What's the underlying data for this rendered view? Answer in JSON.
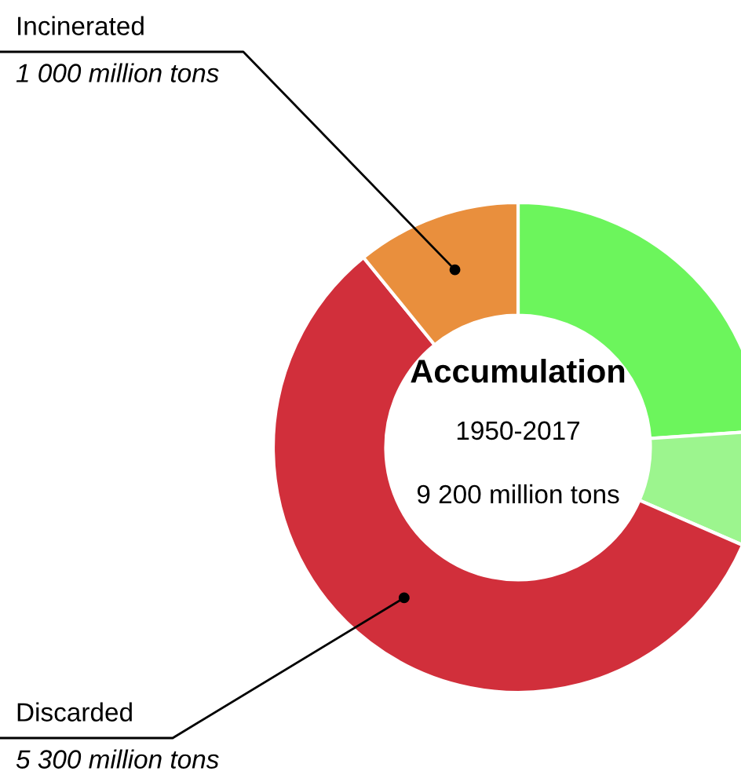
{
  "chart_data": {
    "type": "donut",
    "title": "Accumulation",
    "subtitle": "1950-2017",
    "annotations": [
      "9 200 million tons"
    ],
    "categories": [
      null,
      null,
      "Discarded",
      "Incinerated"
    ],
    "values": [
      2200,
      700,
      5300,
      1000
    ],
    "value_labels": [
      null,
      null,
      "5 300 million tons",
      "1 000 million tons"
    ],
    "colors": [
      "#6cf55c",
      "#9cf58e",
      "#d12f3b",
      "#e98f3d"
    ]
  }
}
